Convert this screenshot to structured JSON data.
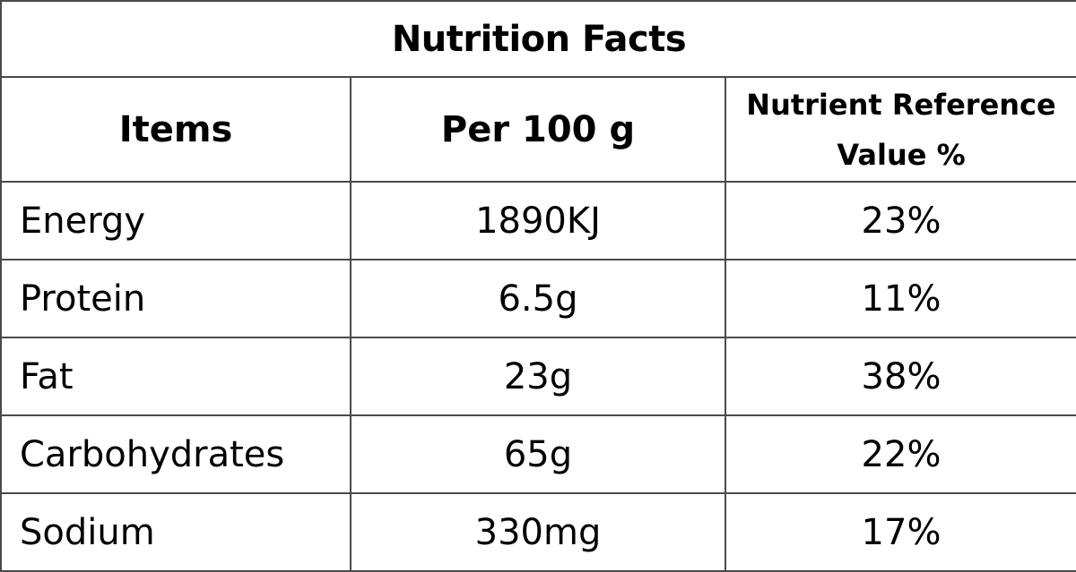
{
  "table": {
    "title": "Nutrition Facts",
    "headers": {
      "items": "Items",
      "per100g": "Per 100 g",
      "nrv_line1": "Nutrient Reference",
      "nrv_line2": "Value %"
    },
    "rows": [
      {
        "item": "Energy",
        "per100g": "1890KJ",
        "nrv": "23%"
      },
      {
        "item": "Protein",
        "per100g": "6.5g",
        "nrv": "11%"
      },
      {
        "item": "Fat",
        "per100g": "23g",
        "nrv": "38%"
      },
      {
        "item": "Carbohydrates",
        "per100g": "65g",
        "nrv": "22%"
      },
      {
        "item": "Sodium",
        "per100g": "330mg",
        "nrv": "17%"
      }
    ]
  }
}
